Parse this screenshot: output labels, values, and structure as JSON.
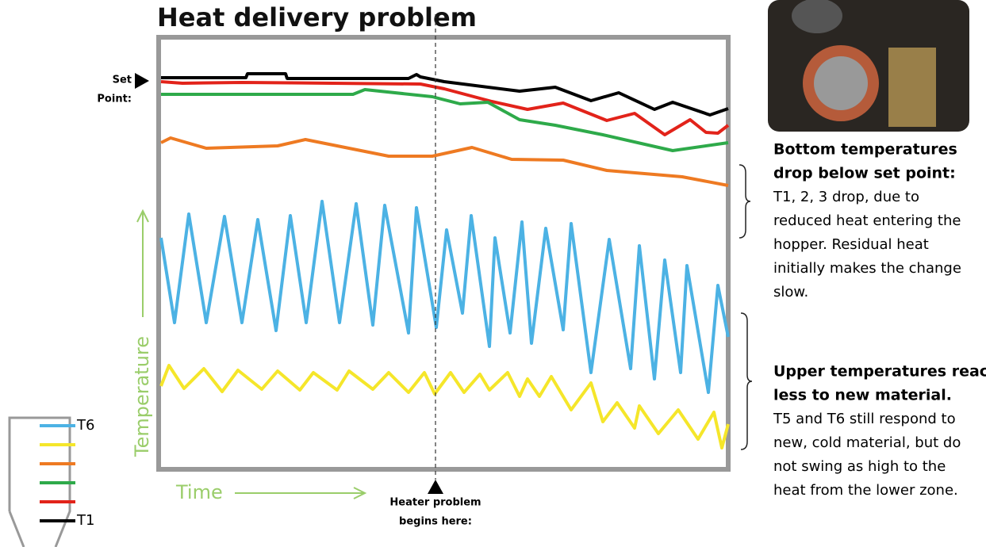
{
  "title": "Heat delivery problem",
  "set_point": [
    "Set",
    "Point:"
  ],
  "y_axis_label": "Temperature",
  "x_axis_label": "Time",
  "marker_label": [
    "Heater problem",
    "begins here:"
  ],
  "legend": {
    "top": "T6",
    "bottom": "T1"
  },
  "notes": [
    {
      "heading": [
        "Bottom temperatures",
        "drop below set point:"
      ],
      "body": [
        "T1, 2, 3 drop, due to",
        "reduced heat entering the",
        "hopper.  Residual heat",
        "initially makes the change",
        "slow."
      ]
    },
    {
      "heading": [
        "Upper temperatures react",
        "less to new material."
      ],
      "body": [
        "T5 and T6 still respond to",
        "new, cold material, but do",
        "not swing as high to the",
        "heat from the lower zone."
      ]
    }
  ]
}
